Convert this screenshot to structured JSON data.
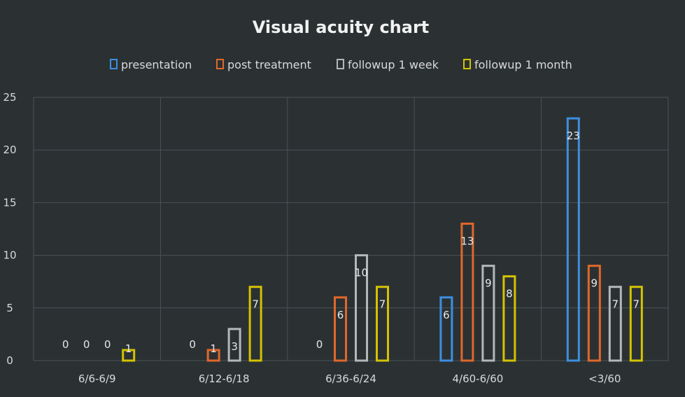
{
  "chart_data": {
    "type": "bar",
    "title": "Visual acuity chart",
    "categories": [
      "6/6-6/9",
      "6/12-6/18",
      "6/36-6/24",
      "4/60-6/60",
      "<3/60"
    ],
    "series": [
      {
        "name": "presentation",
        "color": "#3d8fe0",
        "values": [
          0,
          0,
          0,
          6,
          23
        ],
        "labels": [
          "0",
          "0",
          "0",
          "6",
          "23"
        ]
      },
      {
        "name": "post treatment",
        "color": "#e0682a",
        "values": [
          0,
          1,
          6,
          13,
          9
        ],
        "labels": [
          "0",
          "1",
          "6",
          "13",
          "9"
        ]
      },
      {
        "name": "followup 1 week",
        "color": "#b4b8ba",
        "values": [
          0,
          3,
          10,
          9,
          7
        ],
        "labels": [
          "0",
          "3",
          "10",
          "9",
          "7"
        ]
      },
      {
        "name": "followup 1 month",
        "color": "#d4c300",
        "values": [
          1,
          7,
          7,
          8,
          7
        ],
        "labels": [
          "1",
          "7",
          "7",
          "8",
          "7"
        ]
      }
    ],
    "ylim": [
      0,
      25
    ],
    "yticks": [
      "0",
      "5",
      "10",
      "15",
      "20",
      "25"
    ],
    "grid": true,
    "legend_position": "top"
  }
}
